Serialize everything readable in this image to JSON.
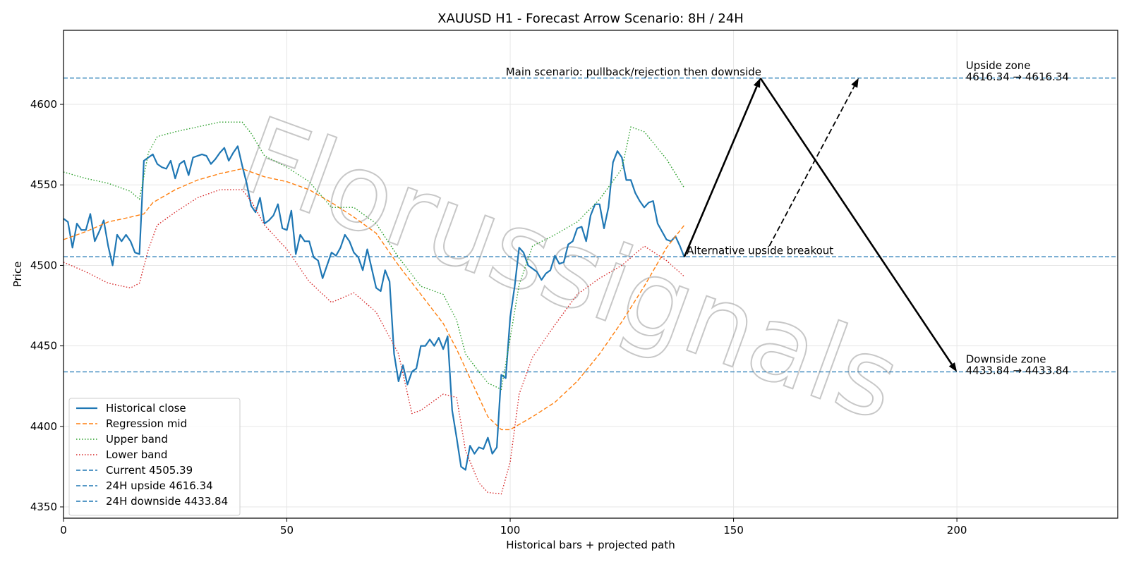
{
  "chart_data": {
    "type": "line",
    "title": "XAUUSD H1 - Forecast Arrow Scenario: 8H / 24H",
    "xlabel": "Historical bars + projected path",
    "ylabel": "Price",
    "xlim": [
      0,
      236
    ],
    "ylim": [
      4343,
      4646
    ],
    "xticks": [
      0,
      50,
      100,
      150,
      200
    ],
    "yticks": [
      4350,
      4400,
      4450,
      4500,
      4550,
      4600
    ],
    "grid": true,
    "legend_position": "lower-left",
    "watermark": "Florussignals",
    "series": [
      {
        "name": "Historical close",
        "color": "#1f77b4",
        "style": "solid",
        "x": [
          0,
          1,
          2,
          3,
          4,
          5,
          6,
          7,
          8,
          9,
          10,
          11,
          12,
          13,
          14,
          15,
          16,
          17,
          18,
          19,
          20,
          21,
          22,
          23,
          24,
          25,
          26,
          27,
          28,
          29,
          30,
          31,
          32,
          33,
          34,
          35,
          36,
          37,
          38,
          39,
          40,
          41,
          42,
          43,
          44,
          45,
          46,
          47,
          48,
          49,
          50,
          51,
          52,
          53,
          54,
          55,
          56,
          57,
          58,
          59,
          60,
          61,
          62,
          63,
          64,
          65,
          66,
          67,
          68,
          69,
          70,
          71,
          72,
          73,
          74,
          75,
          76,
          77,
          78,
          79,
          80,
          81,
          82,
          83,
          84,
          85,
          86,
          87,
          88,
          89,
          90,
          91,
          92,
          93,
          94,
          95,
          96,
          97,
          98,
          99,
          100,
          101,
          102,
          103,
          104,
          105,
          106,
          107,
          108,
          109,
          110,
          111,
          112,
          113,
          114,
          115,
          116,
          117,
          118,
          119,
          120,
          121,
          122,
          123,
          124,
          125,
          126,
          127,
          128,
          129,
          130,
          131,
          132,
          133,
          134,
          135,
          136,
          137,
          138,
          139
        ],
        "values": [
          4529,
          4527,
          4511,
          4526,
          4522,
          4522,
          4532,
          4515,
          4521,
          4528,
          4512,
          4500,
          4519,
          4515,
          4519,
          4515,
          4508,
          4507,
          4565,
          4567,
          4569,
          4563,
          4561,
          4560,
          4565,
          4554,
          4563,
          4565,
          4556,
          4567,
          4568,
          4569,
          4568,
          4563,
          4566,
          4570,
          4573,
          4565,
          4570,
          4574,
          4562,
          4551,
          4537,
          4533,
          4542,
          4526,
          4528,
          4531,
          4538,
          4523,
          4522,
          4534,
          4507,
          4519,
          4515,
          4515,
          4505,
          4503,
          4492,
          4500,
          4508,
          4506,
          4511,
          4519,
          4515,
          4508,
          4505,
          4497,
          4510,
          4498,
          4486,
          4484,
          4497,
          4490,
          4445,
          4428,
          4438,
          4426,
          4434,
          4436,
          4450,
          4450,
          4454,
          4450,
          4455,
          4448,
          4456,
          4410,
          4393,
          4375,
          4373,
          4388,
          4383,
          4387,
          4386,
          4393,
          4383,
          4387,
          4432,
          4430,
          4468,
          4487,
          4511,
          4508,
          4500,
          4498,
          4496,
          4491,
          4495,
          4497,
          4506,
          4501,
          4502,
          4513,
          4515,
          4523,
          4524,
          4515,
          4531,
          4538,
          4538,
          4523,
          4536,
          4564,
          4571,
          4567,
          4553,
          4553,
          4545,
          4540,
          4536,
          4539,
          4540,
          4526,
          4521,
          4516,
          4515,
          4518,
          4512,
          4505
        ]
      },
      {
        "name": "Regression mid",
        "color": "#ff7f0e",
        "style": "dashed",
        "x": [
          0,
          5,
          10,
          15,
          18,
          20,
          25,
          30,
          35,
          40,
          45,
          50,
          55,
          60,
          65,
          70,
          75,
          80,
          85,
          88,
          90,
          93,
          95,
          98,
          100,
          105,
          110,
          115,
          120,
          125,
          130,
          135,
          139
        ],
        "values": [
          4516,
          4521,
          4527,
          4530,
          4532,
          4539,
          4547,
          4553,
          4557,
          4560,
          4555,
          4552,
          4547,
          4539,
          4530,
          4520,
          4500,
          4482,
          4464,
          4448,
          4436,
          4418,
          4406,
          4398,
          4398,
          4406,
          4415,
          4428,
          4445,
          4465,
          4487,
          4511,
          4525
        ]
      },
      {
        "name": "Upper band",
        "color": "#2ca02c",
        "style": "dotted",
        "x": [
          0,
          5,
          10,
          15,
          17,
          19,
          21,
          25,
          30,
          35,
          40,
          42,
          45,
          50,
          55,
          60,
          65,
          70,
          75,
          80,
          85,
          88,
          90,
          93,
          95,
          98,
          100,
          102,
          105,
          110,
          115,
          120,
          125,
          127,
          130,
          135,
          139
        ],
        "values": [
          4558,
          4554,
          4551,
          4546,
          4541,
          4570,
          4580,
          4583,
          4586,
          4589,
          4589,
          4582,
          4568,
          4561,
          4552,
          4536,
          4536,
          4526,
          4505,
          4487,
          4482,
          4466,
          4445,
          4434,
          4427,
          4423,
          4455,
          4488,
          4512,
          4519,
          4527,
          4541,
          4560,
          4586,
          4583,
          4566,
          4548
        ]
      },
      {
        "name": "Lower band",
        "color": "#d62728",
        "style": "dotted",
        "x": [
          0,
          5,
          10,
          15,
          17,
          19,
          21,
          25,
          30,
          35,
          40,
          42,
          45,
          50,
          55,
          60,
          65,
          70,
          75,
          78,
          80,
          85,
          88,
          90,
          93,
          95,
          98,
          100,
          102,
          105,
          110,
          115,
          120,
          125,
          130,
          135,
          139
        ],
        "values": [
          4502,
          4496,
          4489,
          4486,
          4489,
          4510,
          4525,
          4533,
          4542,
          4547,
          4547,
          4540,
          4525,
          4510,
          4490,
          4477,
          4483,
          4471,
          4445,
          4408,
          4410,
          4420,
          4418,
          4385,
          4365,
          4359,
          4358,
          4378,
          4420,
          4443,
          4463,
          4482,
          4492,
          4500,
          4512,
          4503,
          4493
        ]
      }
    ],
    "reference_lines": [
      {
        "name": "Current 4505.39",
        "y": 4505.39,
        "color": "#1f77b4"
      },
      {
        "name": "24H upside 4616.34",
        "y": 4616.34,
        "color": "#1f77b4"
      },
      {
        "name": "24H downside 4433.84",
        "y": 4433.84,
        "color": "#1f77b4"
      }
    ],
    "arrows": [
      {
        "from": [
          139,
          4505.39
        ],
        "to": [
          156,
          4616.34
        ],
        "style": "solid"
      },
      {
        "from": [
          156,
          4616.34
        ],
        "to": [
          200,
          4433.84
        ],
        "style": "solid"
      },
      {
        "from": [
          158,
          4512
        ],
        "to": [
          178,
          4616.34
        ],
        "style": "dashed"
      }
    ],
    "annotations": [
      {
        "id": "main",
        "text": "Main scenario: pullback/rejection then downside",
        "x": 99,
        "y": 4618
      },
      {
        "id": "alt",
        "text": "Alternative upside breakout",
        "x": 139.5,
        "y": 4507
      },
      {
        "id": "up-title",
        "text": "Upside zone",
        "x": 202,
        "y": 4622
      },
      {
        "id": "up-value",
        "text": "4616.34 → 4616.34",
        "x": 202,
        "y": 4615
      },
      {
        "id": "down-title",
        "text": "Downside zone",
        "x": 202,
        "y": 4439.5
      },
      {
        "id": "down-value",
        "text": "4433.84 → 4433.84",
        "x": 202,
        "y": 4432.5
      }
    ]
  }
}
